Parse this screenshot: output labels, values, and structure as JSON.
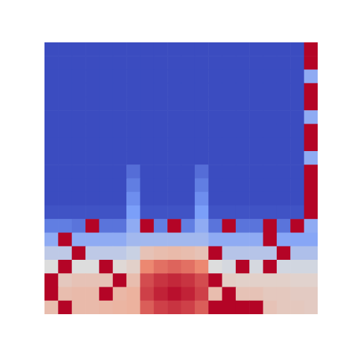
{
  "chart_data": {
    "type": "heatmap",
    "tick_labels": false,
    "zlim": [
      0,
      1
    ],
    "cells": [
      [
        0,
        0,
        0,
        0,
        0,
        0,
        0,
        0,
        0,
        0,
        0,
        0,
        0,
        0,
        0,
        0,
        0,
        0,
        0,
        1
      ],
      [
        0,
        0,
        0,
        0,
        0,
        0,
        0,
        0,
        0,
        0,
        0,
        0,
        0,
        0,
        0,
        0,
        0,
        0,
        0,
        1
      ],
      [
        0,
        0,
        0,
        0,
        0,
        0,
        0,
        0,
        0,
        0,
        0,
        0,
        0,
        0,
        0,
        0,
        0,
        0,
        0,
        0.3
      ],
      [
        0,
        0,
        0,
        0,
        0,
        0,
        0,
        0,
        0,
        0,
        0,
        0,
        0,
        0,
        0,
        0,
        0,
        0,
        0,
        1
      ],
      [
        0,
        0,
        0,
        0,
        0,
        0,
        0,
        0,
        0,
        0,
        0,
        0,
        0,
        0,
        0,
        0,
        0,
        0,
        0,
        1
      ],
      [
        0,
        0,
        0,
        0,
        0,
        0,
        0,
        0,
        0,
        0,
        0,
        0,
        0,
        0,
        0,
        0,
        0,
        0,
        0,
        0.3
      ],
      [
        0,
        0,
        0,
        0,
        0,
        0,
        0,
        0,
        0,
        0,
        0,
        0,
        0,
        0,
        0,
        0,
        0,
        0,
        0,
        1
      ],
      [
        0,
        0,
        0,
        0,
        0,
        0,
        0,
        0,
        0,
        0,
        0,
        0,
        0,
        0,
        0,
        0,
        0,
        0,
        0,
        1
      ],
      [
        0,
        0,
        0,
        0,
        0,
        0,
        0,
        0,
        0,
        0,
        0,
        0,
        0,
        0,
        0,
        0,
        0,
        0,
        0,
        0.3
      ],
      [
        0,
        0,
        0,
        0,
        0,
        0,
        0.1,
        0,
        0,
        0,
        0,
        0.1,
        0,
        0,
        0,
        0,
        0,
        0,
        0,
        1
      ],
      [
        0,
        0,
        0,
        0,
        0,
        0,
        0.15,
        0,
        0,
        0,
        0,
        0.15,
        0,
        0,
        0,
        0,
        0,
        0,
        0,
        1
      ],
      [
        0,
        0,
        0,
        0,
        0,
        0,
        0.2,
        0,
        0,
        0,
        0,
        0.2,
        0,
        0,
        0,
        0,
        0,
        0,
        0,
        1
      ],
      [
        0.02,
        0.02,
        0.02,
        0.02,
        0.02,
        0.02,
        0.25,
        0.02,
        0.02,
        0.02,
        0.02,
        0.25,
        0.02,
        0.02,
        0.02,
        0.02,
        0.02,
        0.02,
        0.02,
        1
      ],
      [
        0.15,
        0.15,
        0.12,
        1,
        0.12,
        0.12,
        0.3,
        1,
        0.15,
        1,
        0.15,
        0.3,
        0.12,
        1,
        0.12,
        0.12,
        1,
        0.12,
        1,
        0.3
      ],
      [
        0.3,
        1,
        0.3,
        0.3,
        0.3,
        0.3,
        0.35,
        0.35,
        0.35,
        0.35,
        0.35,
        0.35,
        0.3,
        0.3,
        0.3,
        0.3,
        1,
        0.28,
        0.28,
        0.28
      ],
      [
        0.42,
        0.42,
        1,
        0.42,
        0.42,
        0.42,
        0.45,
        0.6,
        0.62,
        0.63,
        0.62,
        0.6,
        1,
        0.4,
        0.4,
        0.4,
        0.4,
        1,
        0.38,
        0.38
      ],
      [
        0.5,
        1,
        0.5,
        0.5,
        1,
        0.52,
        0.55,
        0.78,
        0.82,
        0.84,
        0.82,
        0.78,
        0.5,
        0.48,
        1,
        0.48,
        1,
        0.47,
        0.47,
        0.47
      ],
      [
        1,
        0.58,
        0.6,
        0.6,
        0.6,
        1,
        0.62,
        0.88,
        0.92,
        0.94,
        0.92,
        0.88,
        1,
        0.56,
        0.55,
        0.55,
        0.55,
        0.55,
        0.54,
        0.54
      ],
      [
        1,
        0.62,
        0.63,
        0.63,
        1,
        0.64,
        0.66,
        0.9,
        0.95,
        0.98,
        0.95,
        0.9,
        0.62,
        1,
        0.6,
        0.6,
        0.58,
        0.58,
        0.57,
        0.57
      ],
      [
        0.62,
        1,
        0.63,
        0.63,
        0.64,
        0.65,
        0.66,
        0.85,
        0.9,
        0.92,
        0.9,
        0.85,
        1,
        1,
        1,
        1,
        0.6,
        0.58,
        0.58,
        0.57
      ]
    ]
  }
}
